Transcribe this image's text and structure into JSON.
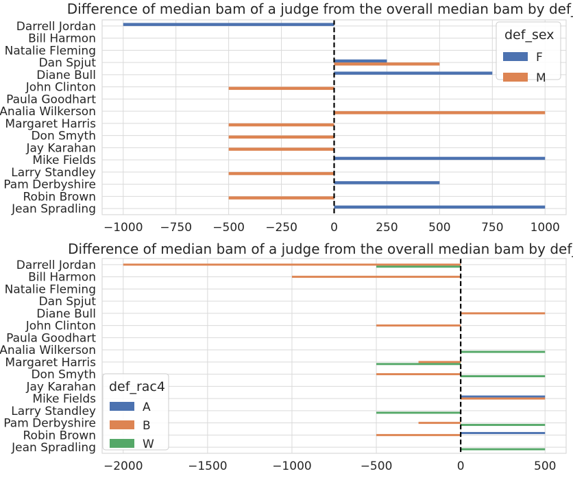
{
  "colors": {
    "F": "#4c72b0",
    "M": "#dd8452",
    "A": "#4c72b0",
    "B": "#dd8452",
    "W": "#55a868",
    "grid": "#d9d9d9",
    "reference_line": "#000000"
  },
  "chart_data": [
    {
      "type": "bar",
      "orientation": "horizontal",
      "title": "Difference of median bam of a judge from the overall median bam by def_sex",
      "xlabel": "",
      "ylabel": "",
      "categories": [
        "Darrell Jordan",
        "Bill Harmon",
        "Natalie Fleming",
        "Dan Spjut",
        "Diane Bull",
        "John Clinton",
        "Paula Goodhart",
        "Analia Wilkerson",
        "Margaret Harris",
        "Don Smyth",
        "Jay Karahan",
        "Mike Fields",
        "Larry Standley",
        "Pam Derbyshire",
        "Robin Brown",
        "Jean Spradling"
      ],
      "legend_title": "def_sex",
      "legend_position": "top-right",
      "series": [
        {
          "name": "F",
          "values": [
            -1000,
            0,
            0,
            250,
            750,
            0,
            0,
            0,
            0,
            0,
            0,
            1000,
            0,
            500,
            0,
            1000
          ]
        },
        {
          "name": "M",
          "values": [
            0,
            0,
            0,
            500,
            0,
            -500,
            0,
            1000,
            -500,
            -500,
            -500,
            0,
            -500,
            0,
            -500,
            0
          ]
        }
      ],
      "xlim": [
        -1100,
        1100
      ],
      "xticks": [
        -1000,
        -750,
        -500,
        -250,
        0,
        250,
        500,
        750,
        1000
      ],
      "xtick_labels": [
        "−1000",
        "−750",
        "−500",
        "−250",
        "0",
        "250",
        "500",
        "750",
        "1000"
      ],
      "reference_line": 0,
      "grid": true
    },
    {
      "type": "bar",
      "orientation": "horizontal",
      "title": "Difference of median bam of a judge from the overall median bam by def_rac",
      "xlabel": "",
      "ylabel": "",
      "categories": [
        "Darrell Jordan",
        "Bill Harmon",
        "Natalie Fleming",
        "Dan Spjut",
        "Diane Bull",
        "John Clinton",
        "Paula Goodhart",
        "Analia Wilkerson",
        "Margaret Harris",
        "Don Smyth",
        "Jay Karahan",
        "Mike Fields",
        "Larry Standley",
        "Pam Derbyshire",
        "Robin Brown",
        "Jean Spradling"
      ],
      "legend_title": "def_rac4",
      "legend_position": "bottom-left",
      "series": [
        {
          "name": "A",
          "values": [
            0,
            0,
            0,
            0,
            0,
            0,
            0,
            0,
            0,
            0,
            0,
            500,
            0,
            0,
            500,
            0
          ]
        },
        {
          "name": "B",
          "values": [
            -2000,
            -1000,
            0,
            0,
            500,
            -500,
            0,
            0,
            -250,
            -500,
            0,
            500,
            0,
            -250,
            -500,
            0
          ]
        },
        {
          "name": "W",
          "values": [
            -500,
            0,
            0,
            0,
            0,
            0,
            0,
            500,
            -500,
            500,
            0,
            0,
            -500,
            500,
            0,
            500
          ]
        }
      ],
      "xlim": [
        -2125,
        625
      ],
      "xticks": [
        -2000,
        -1500,
        -1000,
        -500,
        0,
        500
      ],
      "xtick_labels": [
        "−2000",
        "−1500",
        "−1000",
        "−500",
        "0",
        "500"
      ],
      "reference_line": 0,
      "grid": true
    }
  ]
}
